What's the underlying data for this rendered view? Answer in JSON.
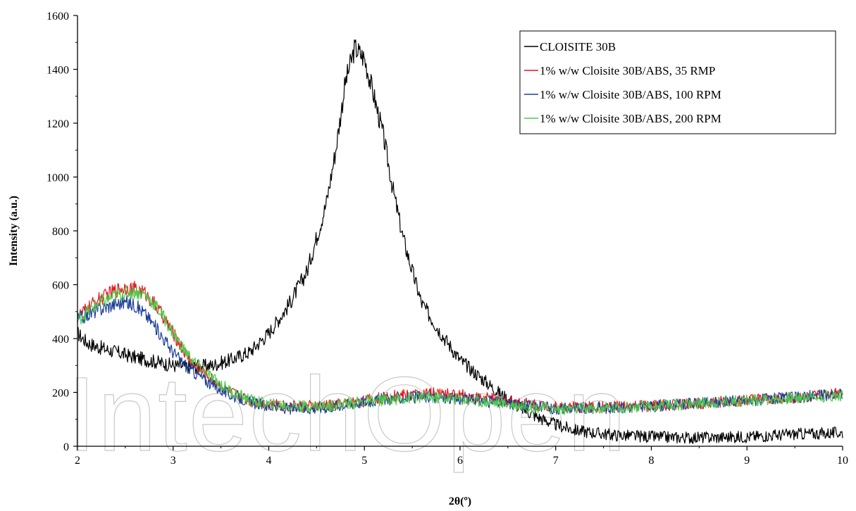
{
  "watermark": "IntechOpen",
  "chart_data": {
    "type": "line",
    "title": "",
    "xlabel": "2θ(º)",
    "ylabel": "Intensity (a.u.)",
    "xlim": [
      2,
      10
    ],
    "ylim": [
      0,
      1600
    ],
    "xticks": [
      2,
      3,
      4,
      5,
      6,
      7,
      8,
      9,
      10
    ],
    "yticks": [
      0,
      200,
      400,
      600,
      800,
      1000,
      1200,
      1400,
      1600
    ],
    "grid": false,
    "legend_position": "top-right",
    "series": [
      {
        "name": "CLOISITE 30B",
        "color": "#000000",
        "noise": 22,
        "points": [
          [
            2.0,
            420
          ],
          [
            2.1,
            385
          ],
          [
            2.2,
            370
          ],
          [
            2.4,
            350
          ],
          [
            2.6,
            330
          ],
          [
            2.8,
            315
          ],
          [
            3.0,
            300
          ],
          [
            3.2,
            295
          ],
          [
            3.4,
            300
          ],
          [
            3.6,
            320
          ],
          [
            3.8,
            350
          ],
          [
            4.0,
            420
          ],
          [
            4.2,
            520
          ],
          [
            4.4,
            650
          ],
          [
            4.6,
            900
          ],
          [
            4.7,
            1100
          ],
          [
            4.8,
            1350
          ],
          [
            4.9,
            1480
          ],
          [
            5.0,
            1440
          ],
          [
            5.1,
            1300
          ],
          [
            5.2,
            1150
          ],
          [
            5.3,
            950
          ],
          [
            5.4,
            780
          ],
          [
            5.5,
            650
          ],
          [
            5.6,
            530
          ],
          [
            5.8,
            420
          ],
          [
            6.0,
            320
          ],
          [
            6.2,
            260
          ],
          [
            6.4,
            200
          ],
          [
            6.6,
            150
          ],
          [
            6.8,
            110
          ],
          [
            7.0,
            80
          ],
          [
            7.2,
            60
          ],
          [
            7.4,
            50
          ],
          [
            7.6,
            42
          ],
          [
            7.8,
            38
          ],
          [
            8.0,
            35
          ],
          [
            8.2,
            33
          ],
          [
            8.5,
            32
          ],
          [
            9.0,
            35
          ],
          [
            9.5,
            45
          ],
          [
            10.0,
            50
          ]
        ]
      },
      {
        "name": "1% w/w Cloisite 30B/ABS, 35 RMP",
        "color": "#e8141e",
        "noise": 20,
        "points": [
          [
            2.0,
            480
          ],
          [
            2.2,
            540
          ],
          [
            2.4,
            580
          ],
          [
            2.5,
            590
          ],
          [
            2.6,
            585
          ],
          [
            2.7,
            570
          ],
          [
            2.8,
            530
          ],
          [
            2.9,
            480
          ],
          [
            3.0,
            420
          ],
          [
            3.1,
            360
          ],
          [
            3.2,
            310
          ],
          [
            3.4,
            250
          ],
          [
            3.6,
            200
          ],
          [
            3.8,
            170
          ],
          [
            4.0,
            155
          ],
          [
            4.2,
            150
          ],
          [
            4.4,
            148
          ],
          [
            4.6,
            150
          ],
          [
            4.8,
            160
          ],
          [
            5.0,
            170
          ],
          [
            5.2,
            180
          ],
          [
            5.4,
            190
          ],
          [
            5.6,
            195
          ],
          [
            5.8,
            195
          ],
          [
            6.0,
            190
          ],
          [
            6.2,
            180
          ],
          [
            6.5,
            170
          ],
          [
            6.8,
            155
          ],
          [
            7.0,
            145
          ],
          [
            7.5,
            145
          ],
          [
            8.0,
            150
          ],
          [
            8.5,
            160
          ],
          [
            9.0,
            170
          ],
          [
            9.5,
            180
          ],
          [
            10.0,
            195
          ]
        ]
      },
      {
        "name": "1% w/w Cloisite 30B/ABS, 100 RPM",
        "color": "#1f3f9a",
        "noise": 20,
        "points": [
          [
            2.0,
            470
          ],
          [
            2.2,
            505
          ],
          [
            2.4,
            530
          ],
          [
            2.5,
            535
          ],
          [
            2.6,
            525
          ],
          [
            2.7,
            495
          ],
          [
            2.8,
            450
          ],
          [
            2.9,
            400
          ],
          [
            3.0,
            350
          ],
          [
            3.1,
            310
          ],
          [
            3.2,
            280
          ],
          [
            3.4,
            230
          ],
          [
            3.6,
            190
          ],
          [
            3.8,
            165
          ],
          [
            4.0,
            148
          ],
          [
            4.2,
            140
          ],
          [
            4.4,
            140
          ],
          [
            4.6,
            145
          ],
          [
            4.8,
            155
          ],
          [
            5.0,
            165
          ],
          [
            5.2,
            175
          ],
          [
            5.4,
            180
          ],
          [
            5.6,
            182
          ],
          [
            5.8,
            180
          ],
          [
            6.0,
            175
          ],
          [
            6.2,
            170
          ],
          [
            6.5,
            160
          ],
          [
            6.8,
            148
          ],
          [
            7.0,
            140
          ],
          [
            7.5,
            142
          ],
          [
            8.0,
            148
          ],
          [
            8.5,
            160
          ],
          [
            9.0,
            170
          ],
          [
            9.5,
            182
          ],
          [
            10.0,
            195
          ]
        ]
      },
      {
        "name": "1% w/w Cloisite 30B/ABS, 200 RPM",
        "color": "#4fc94a",
        "noise": 20,
        "points": [
          [
            2.0,
            470
          ],
          [
            2.2,
            525
          ],
          [
            2.4,
            560
          ],
          [
            2.5,
            570
          ],
          [
            2.6,
            575
          ],
          [
            2.7,
            565
          ],
          [
            2.8,
            530
          ],
          [
            2.9,
            480
          ],
          [
            3.0,
            420
          ],
          [
            3.1,
            365
          ],
          [
            3.2,
            320
          ],
          [
            3.4,
            255
          ],
          [
            3.6,
            205
          ],
          [
            3.8,
            172
          ],
          [
            4.0,
            155
          ],
          [
            4.2,
            150
          ],
          [
            4.4,
            148
          ],
          [
            4.6,
            150
          ],
          [
            4.8,
            158
          ],
          [
            5.0,
            165
          ],
          [
            5.2,
            172
          ],
          [
            5.4,
            178
          ],
          [
            5.6,
            182
          ],
          [
            5.8,
            180
          ],
          [
            6.0,
            175
          ],
          [
            6.2,
            168
          ],
          [
            6.5,
            158
          ],
          [
            6.8,
            145
          ],
          [
            7.0,
            138
          ],
          [
            7.5,
            140
          ],
          [
            8.0,
            148
          ],
          [
            8.5,
            160
          ],
          [
            9.0,
            170
          ],
          [
            9.5,
            180
          ],
          [
            10.0,
            190
          ]
        ]
      }
    ]
  }
}
